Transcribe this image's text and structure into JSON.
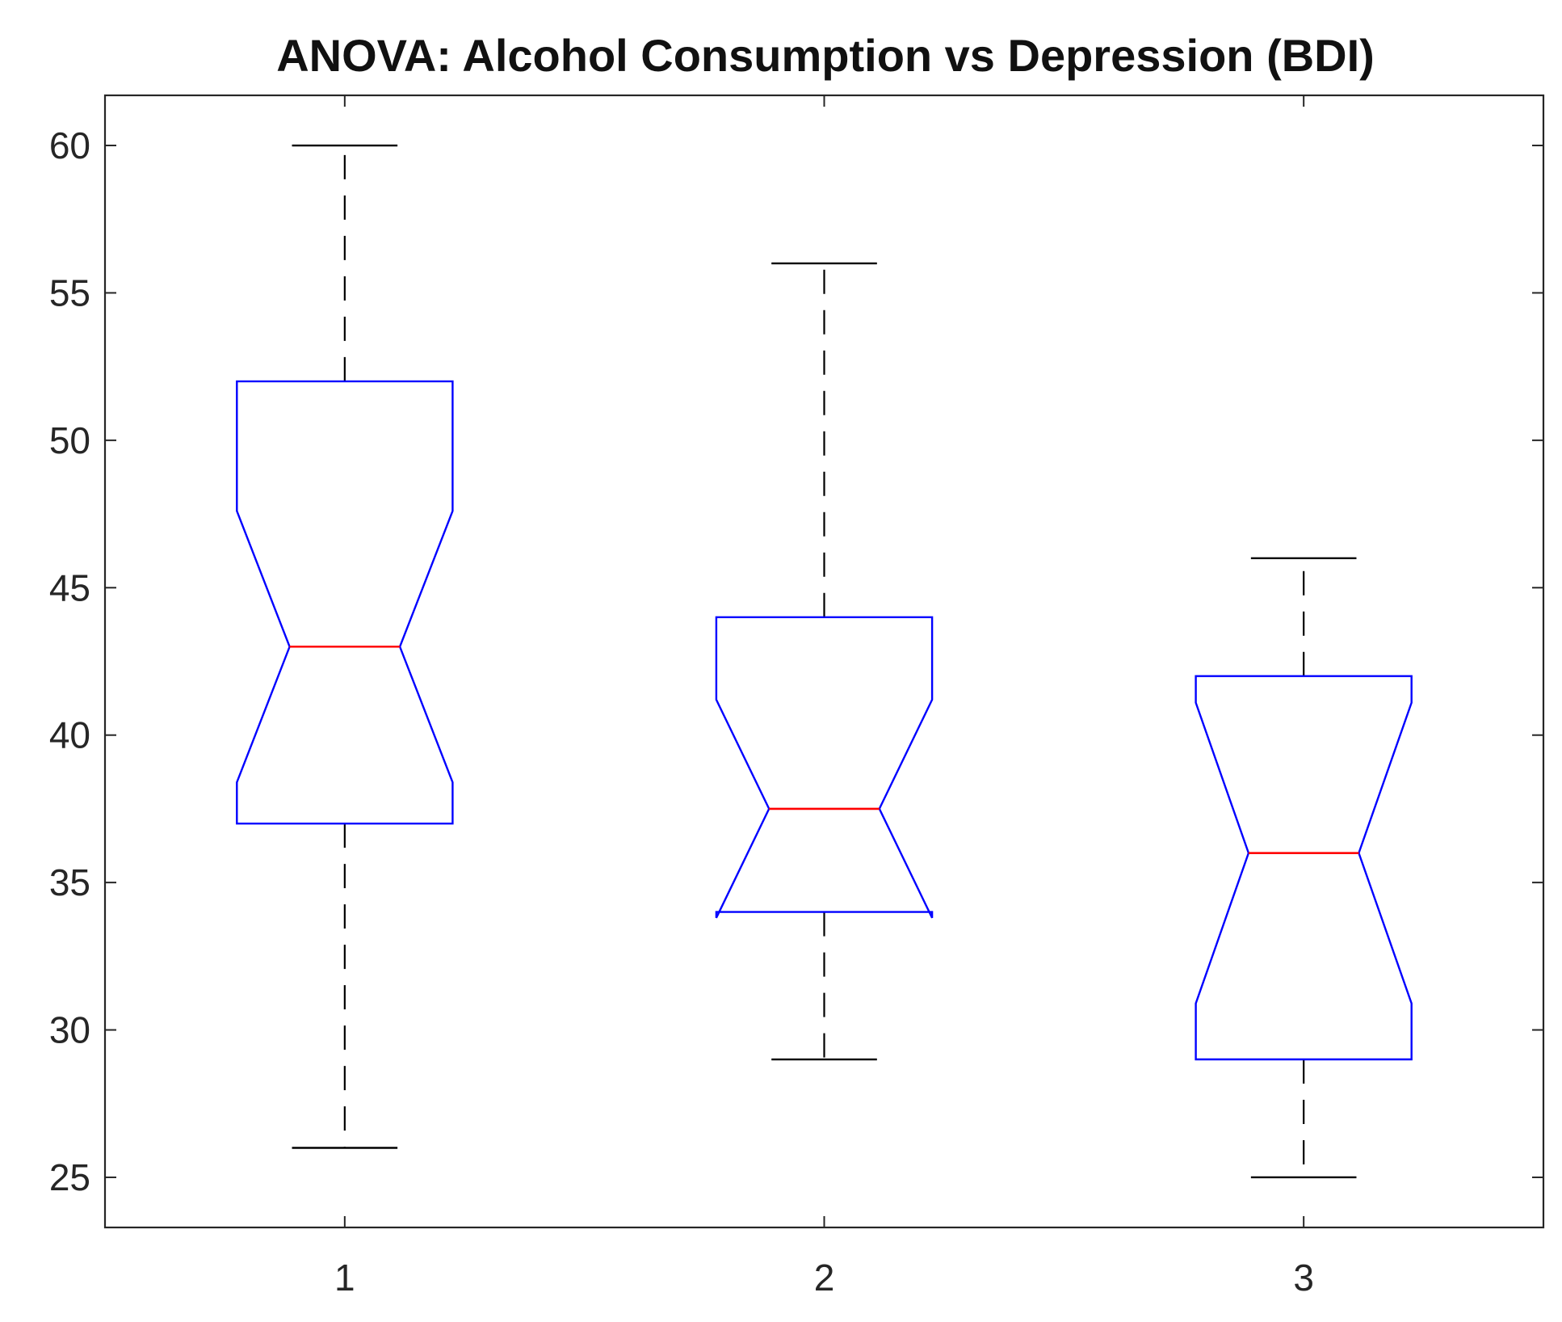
{
  "chart_data": {
    "type": "boxplot",
    "title": "ANOVA: Alcohol Consumption vs Depression (BDI)",
    "xlabel": "",
    "ylabel": "",
    "categories": [
      "1",
      "2",
      "3"
    ],
    "ylim": [
      23.3,
      61.7
    ],
    "yticks": [
      25,
      30,
      35,
      40,
      45,
      50,
      55,
      60
    ],
    "ytick_labels": [
      "25",
      "30",
      "35",
      "40",
      "45",
      "50",
      "55",
      "60"
    ],
    "notched": true,
    "boxes": [
      {
        "group": "1",
        "whisker_low": 26,
        "q1": 37,
        "median": 43,
        "q3": 52,
        "whisker_high": 60,
        "notch_low": 38.4,
        "notch_high": 47.6
      },
      {
        "group": "2",
        "whisker_low": 29,
        "q1": 34,
        "median": 37.5,
        "q3": 44,
        "whisker_high": 56,
        "notch_low": 33.8,
        "notch_high": 41.2
      },
      {
        "group": "3",
        "whisker_low": 25,
        "q1": 29,
        "median": 36,
        "q3": 42,
        "whisker_high": 46,
        "notch_low": 30.9,
        "notch_high": 41.1
      }
    ],
    "colors": {
      "box": "#0000ff",
      "median": "#ff0000",
      "whisker": "#000000",
      "axes": "#262626"
    }
  }
}
